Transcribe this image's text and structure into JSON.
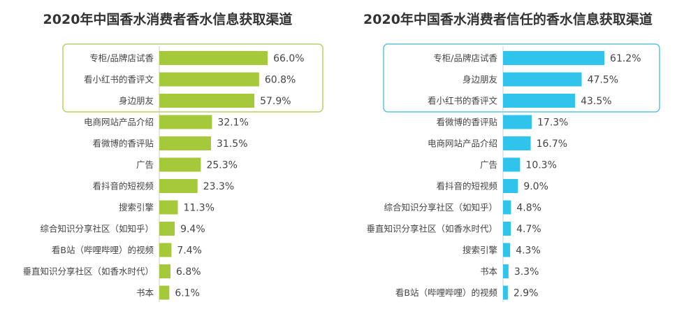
{
  "chart_data": [
    {
      "type": "bar",
      "orientation": "horizontal",
      "title": "2020年中国香水消费者香水信息获取渠道",
      "color": "#a5c93a",
      "highlight_color": "#b5d26a",
      "highlight_top_n": 3,
      "unit": "%",
      "categories": [
        "专柜/品牌店试香",
        "看小红书的香评文",
        "身边朋友",
        "电商网站产品介绍",
        "看微博的香评贴",
        "广告",
        "看抖音的短视频",
        "搜索引擎",
        "综合知识分享社区（如知乎）",
        "看B站（哔哩哔哩）的视频",
        "垂直知识分享社区（如香水时代）",
        "书本"
      ],
      "values": [
        66.0,
        60.8,
        57.9,
        32.1,
        31.5,
        25.3,
        23.3,
        11.3,
        9.4,
        7.4,
        6.8,
        6.1
      ],
      "labels": [
        "66.0%",
        "60.8%",
        "57.9%",
        "32.1%",
        "31.5%",
        "25.3%",
        "23.3%",
        "11.3%",
        "9.4%",
        "7.4%",
        "6.8%",
        "6.1%"
      ]
    },
    {
      "type": "bar",
      "orientation": "horizontal",
      "title": "2020年中国香水消费者信任的香水信息获取渠道",
      "color": "#2ec4ec",
      "highlight_color": "#5cc6dc",
      "highlight_top_n": 3,
      "unit": "%",
      "categories": [
        "专柜/品牌店试香",
        "身边朋友",
        "看小红书的香评文",
        "看微博的香评贴",
        "电商网站产品介绍",
        "广告",
        "看抖音的短视频",
        "综合知识分享社区（如知乎）",
        "垂直知识分享社区（如香水时代）",
        "搜索引擎",
        "书本",
        "看B站（哔哩哔哩）的视频"
      ],
      "values": [
        61.2,
        47.5,
        43.5,
        17.3,
        16.7,
        10.3,
        9.0,
        4.8,
        4.7,
        4.3,
        3.3,
        2.9
      ],
      "labels": [
        "61.2%",
        "47.5%",
        "43.5%",
        "17.3%",
        "16.7%",
        "10.3%",
        "9.0%",
        "4.8%",
        "4.7%",
        "4.3%",
        "3.3%",
        "2.9%"
      ]
    }
  ]
}
